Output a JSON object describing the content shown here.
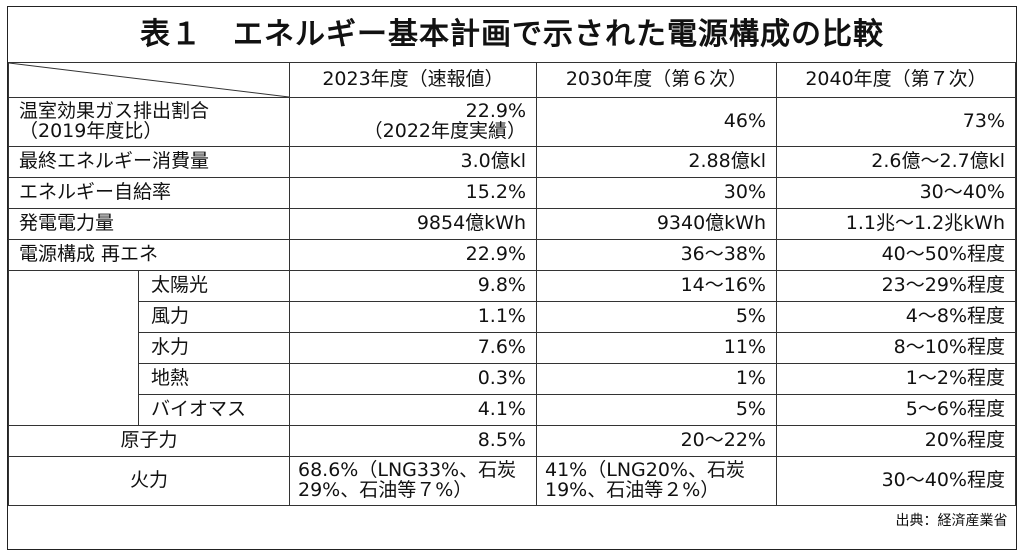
{
  "title": "表１　エネルギー基本計画で示された電源構成の比較",
  "headers": [
    "2023年度（速報値）",
    "2030年度（第６次）",
    "2040年度（第７次）"
  ],
  "rows": {
    "ghg": {
      "label1": "温室効果ガス排出割合",
      "label2": "（2019年度比）",
      "v1a": "22.9%",
      "v1b": "（2022年度実績）",
      "v2": "46%",
      "v3": "73%"
    },
    "final": {
      "label": "最終エネルギー消費量",
      "v1": "3.0億kl",
      "v2": "2.88億kl",
      "v3": "2.6億～2.7億kl"
    },
    "self": {
      "label": "エネルギー自給率",
      "v1": "15.2%",
      "v2": "30%",
      "v3": "30～40%"
    },
    "power": {
      "label": "発電電力量",
      "v1": "9854億kWh",
      "v2": "9340億kWh",
      "v3": "1.1兆～1.2兆kWh"
    },
    "renew": {
      "label": "電源構成 再エネ",
      "v1": "22.9%",
      "v2": "36～38%",
      "v3": "40～50%程度"
    },
    "solar": {
      "label": "太陽光",
      "v1": "9.8%",
      "v2": "14～16%",
      "v3": "23～29%程度"
    },
    "wind": {
      "label": "風力",
      "v1": "1.1%",
      "v2": "5%",
      "v3": "4～8%程度"
    },
    "hydro": {
      "label": "水力",
      "v1": "7.6%",
      "v2": "11%",
      "v3": "8～10%程度"
    },
    "geo": {
      "label": "地熱",
      "v1": "0.3%",
      "v2": "1%",
      "v3": "1～2%程度"
    },
    "bio": {
      "label": "バイオマス",
      "v1": "4.1%",
      "v2": "5%",
      "v3": "5～6%程度"
    },
    "nuclear": {
      "label": "原子力",
      "v1": "8.5%",
      "v2": "20～22%",
      "v3": "20%程度"
    },
    "fire": {
      "label": "火力",
      "v1": "68.6%（LNG33%、石炭29%、石油等７%）",
      "v2": "41%（LNG20%、石炭19%、石油等２%）",
      "v3": "30～40%程度"
    }
  },
  "source": "出典：経済産業省"
}
